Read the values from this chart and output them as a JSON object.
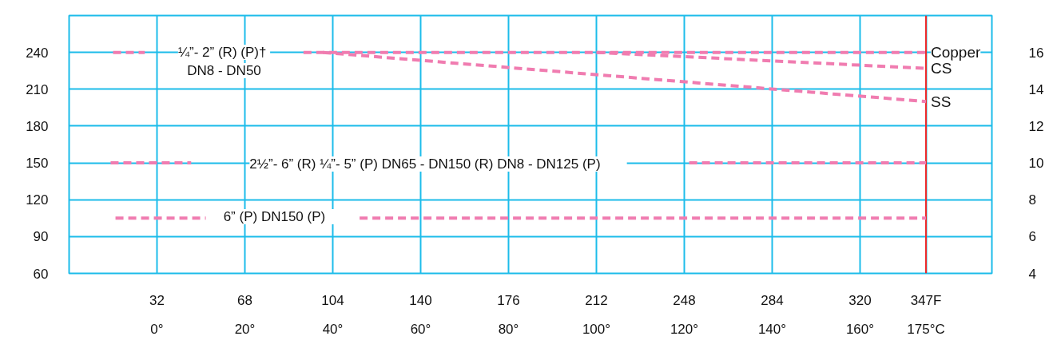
{
  "chart_data": {
    "type": "line",
    "line_style": "dashed",
    "marker": "none",
    "grid": true,
    "xlim": [
      -4,
      374
    ],
    "xticks": [
      32,
      68,
      104,
      140,
      176,
      212,
      248,
      284,
      320,
      {
        "value": 347,
        "label": "347F"
      }
    ],
    "x2lim": [
      -20,
      190
    ],
    "x2ticks": [
      {
        "value": 0,
        "label": "0°"
      },
      {
        "value": 20,
        "label": "20°"
      },
      {
        "value": 40,
        "label": "40°"
      },
      {
        "value": 60,
        "label": "60°"
      },
      {
        "value": 80,
        "label": "80°"
      },
      {
        "value": 100,
        "label": "100°"
      },
      {
        "value": 120,
        "label": "120°"
      },
      {
        "value": 140,
        "label": "140°"
      },
      {
        "value": 160,
        "label": "160°"
      },
      {
        "value": 175,
        "label": "175°C"
      }
    ],
    "ylim": [
      60,
      270
    ],
    "yticks": [
      60,
      90,
      120,
      150,
      180,
      210,
      240
    ],
    "y2lim": [
      4,
      18
    ],
    "y2ticks": [
      4,
      6,
      8,
      10,
      12,
      14,
      16
    ],
    "series": [
      {
        "name": "Copper",
        "color": "#f07cb0",
        "x": [
          14,
          27,
          60,
          92,
          347
        ],
        "values": [
          240,
          240,
          null,
          240,
          240
        ]
      },
      {
        "name": "CS",
        "color": "#f07cb0",
        "x": [
          212,
          347
        ],
        "values": [
          240,
          227
        ]
      },
      {
        "name": "SS",
        "color": "#f07cb0",
        "x": [
          100,
          347
        ],
        "values": [
          240,
          200
        ]
      },
      {
        "color": "#f07cb0",
        "x": [
          13,
          46,
          147,
          250,
          347
        ],
        "values": [
          150,
          150,
          null,
          150,
          150
        ]
      },
      {
        "color": "#f07cb0",
        "x": [
          15,
          52,
          83,
          115,
          347
        ],
        "values": [
          105,
          105,
          null,
          105,
          105
        ]
      }
    ],
    "ref_lines": [
      {
        "axis": "x",
        "value": 347,
        "color": "#ee2a2a"
      }
    ],
    "annotations": [
      "¼”- 2”  (R) (P)†",
      "DN8 - DN50",
      "2½”- 6” (R)  ¼”- 5” (P)    DN65 - DN150 (R)    DN8 - DN125 (P)",
      "6” (P)    DN150 (P)"
    ]
  }
}
